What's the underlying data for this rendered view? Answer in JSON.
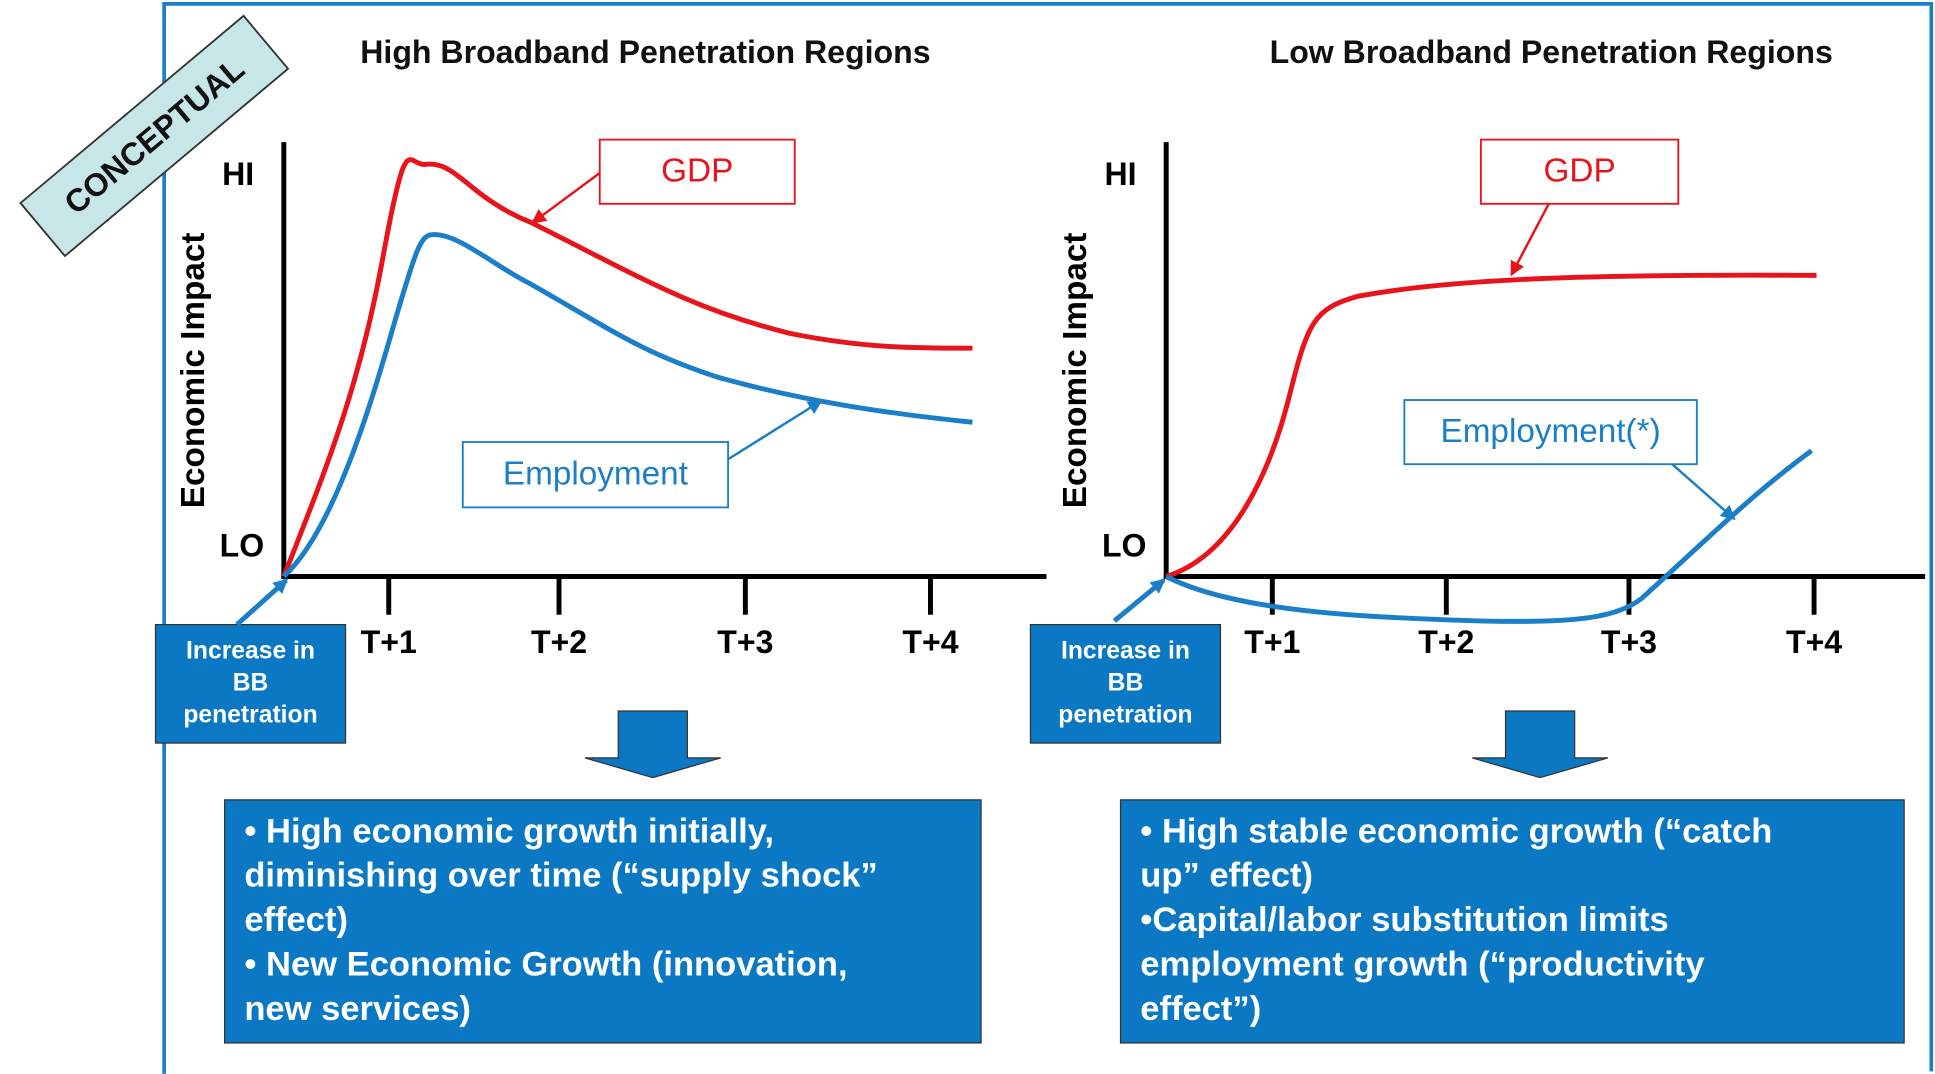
{
  "badge": "CONCEPTUAL",
  "panels": [
    {
      "title": "High Broadband Penetration Regions",
      "y_axis_label": "Economic Impact",
      "hi_label": "HI",
      "lo_label": "LO",
      "x_ticks": [
        "T+1",
        "T+2",
        "T+3",
        "T+4"
      ],
      "gdp_label": "GDP",
      "employment_label": "Employment",
      "input_label": [
        "Increase in",
        "BB",
        "penetration"
      ],
      "summary": [
        "• High economic growth initially,",
        "diminishing over time (“supply shock”",
        "effect)",
        "• New Economic Growth (innovation,",
        "new services)"
      ]
    },
    {
      "title": "Low Broadband Penetration Regions",
      "y_axis_label": "Economic Impact",
      "hi_label": "HI",
      "lo_label": "LO",
      "x_ticks": [
        "T+1",
        "T+2",
        "T+3",
        "T+4"
      ],
      "gdp_label": "GDP",
      "employment_label": "Employment(*)",
      "input_label": [
        "Increase in",
        "BB",
        "penetration"
      ],
      "summary": [
        "• High stable economic growth (“catch",
        "up” effect)",
        "•Capital/labor substitution limits",
        "employment growth (“productivity",
        "effect”)"
      ]
    }
  ]
}
